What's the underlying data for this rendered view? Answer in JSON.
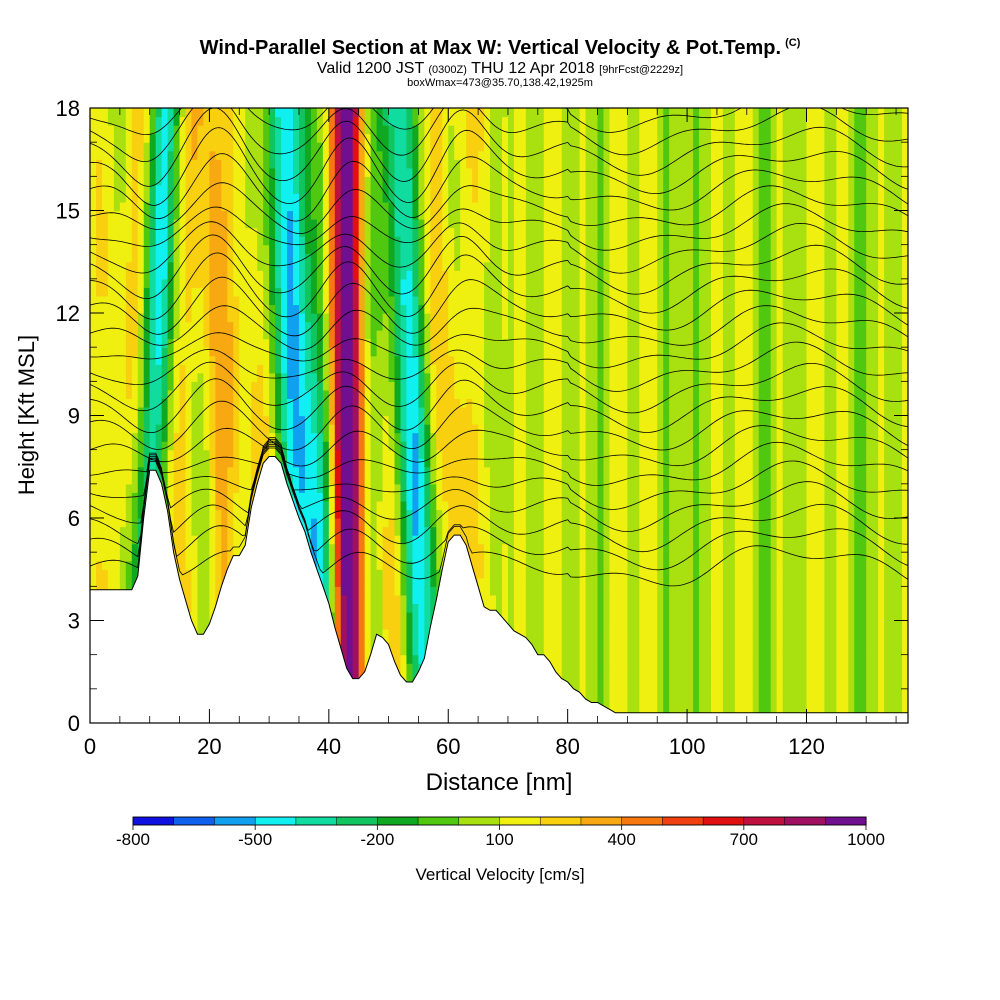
{
  "chart_data": {
    "type": "contour_section",
    "title": "Wind-Parallel Section at Max W: Vertical Velocity & Pot.Temp.",
    "title_corner": "(C)",
    "subtitle_main": "Valid 1200 JST",
    "subtitle_z": "(0300Z)",
    "subtitle_date": "THU 12 Apr 2018",
    "subtitle_fcst": "[9hrFcst@2229z]",
    "subtitle_box": "boxWmax=473@35.70,138.42,1925m",
    "xlabel": "Distance [nm]",
    "ylabel": "Height [Kft MSL]",
    "xlim": [
      0,
      137
    ],
    "ylim": [
      0,
      18
    ],
    "x_ticks": [
      0,
      20,
      40,
      60,
      80,
      100,
      120
    ],
    "y_ticks": [
      0,
      3,
      6,
      9,
      12,
      15,
      18
    ],
    "grid": false,
    "fill_variable": "Vertical Velocity [cm/s]",
    "contour_variable": "Potential Temperature",
    "colorbar": {
      "label": "Vertical Velocity [cm/s]",
      "placement": "bottom",
      "tick_labels": [
        "-800",
        "-500",
        "-200",
        "100",
        "400",
        "700",
        "1000"
      ],
      "tick_values": [
        -800,
        -500,
        -200,
        100,
        400,
        700,
        1000
      ],
      "min": -800,
      "step": 100,
      "colors": [
        "#1010e0",
        "#1060f0",
        "#10a0f0",
        "#10f0f0",
        "#10dca0",
        "#10c460",
        "#10a820",
        "#50c810",
        "#a8e010",
        "#f0f010",
        "#f8d010",
        "#f8a810",
        "#f87810",
        "#f04010",
        "#e01010",
        "#c01040",
        "#a01060",
        "#701090"
      ]
    },
    "velocity_features": [
      {
        "x_center": 10.5,
        "width": 2.5,
        "value": -400,
        "lean": 0.25,
        "top": 18,
        "note": "downdraft"
      },
      {
        "x_center": 21.5,
        "width": 2.5,
        "value": 300,
        "lean": -0.2,
        "top": 18,
        "note": "updraft"
      },
      {
        "x_center": 35,
        "width": 4,
        "value": -500,
        "lean": -0.28,
        "top": 18,
        "note": "downdraft"
      },
      {
        "x_center": 43,
        "width": 2.5,
        "value": 900,
        "lean": -0.04,
        "top": 18,
        "note": "strong updraft"
      },
      {
        "x_center": 54,
        "width": 3,
        "value": -450,
        "lean": -0.3,
        "top": 18,
        "note": "downdraft"
      },
      {
        "x_center": 62,
        "width": 2.5,
        "value": 150,
        "lean": 0.05,
        "top": 18,
        "note": "weak updraft"
      }
    ],
    "terrain_profile": [
      [
        0,
        3.9
      ],
      [
        2,
        3.9
      ],
      [
        3,
        3.9
      ],
      [
        4,
        3.9
      ],
      [
        5,
        3.9
      ],
      [
        6,
        3.9
      ],
      [
        7,
        3.9
      ],
      [
        8,
        4.3
      ],
      [
        9,
        6.0
      ],
      [
        10,
        7.4
      ],
      [
        11,
        7.4
      ],
      [
        12,
        7.0
      ],
      [
        13,
        6.2
      ],
      [
        14,
        5.0
      ],
      [
        15,
        4.2
      ],
      [
        16,
        3.6
      ],
      [
        17,
        3.0
      ],
      [
        18,
        2.6
      ],
      [
        19,
        2.6
      ],
      [
        20,
        2.9
      ],
      [
        21,
        3.4
      ],
      [
        22,
        4.0
      ],
      [
        23,
        4.5
      ],
      [
        24,
        4.9
      ],
      [
        25,
        4.9
      ],
      [
        26,
        5.2
      ],
      [
        27,
        6.3
      ],
      [
        28,
        7.0
      ],
      [
        29,
        7.6
      ],
      [
        30,
        7.8
      ],
      [
        31,
        7.8
      ],
      [
        32,
        7.6
      ],
      [
        33,
        7.0
      ],
      [
        34,
        6.5
      ],
      [
        35,
        6.0
      ],
      [
        36,
        5.6
      ],
      [
        37,
        5.0
      ],
      [
        38,
        4.5
      ],
      [
        39,
        4.0
      ],
      [
        40,
        3.5
      ],
      [
        41,
        2.8
      ],
      [
        42,
        2.2
      ],
      [
        43,
        1.6
      ],
      [
        44,
        1.3
      ],
      [
        45,
        1.3
      ],
      [
        46,
        1.5
      ],
      [
        47,
        2.0
      ],
      [
        48,
        2.6
      ],
      [
        49,
        2.5
      ],
      [
        50,
        2.3
      ],
      [
        51,
        1.8
      ],
      [
        52,
        1.4
      ],
      [
        53,
        1.2
      ],
      [
        54,
        1.2
      ],
      [
        55,
        1.5
      ],
      [
        56,
        1.9
      ],
      [
        57,
        2.8
      ],
      [
        58,
        3.6
      ],
      [
        59,
        4.5
      ],
      [
        60,
        5.3
      ],
      [
        61,
        5.5
      ],
      [
        62,
        5.5
      ],
      [
        63,
        5.2
      ],
      [
        64,
        4.6
      ],
      [
        65,
        4.0
      ],
      [
        66,
        3.4
      ],
      [
        67,
        3.3
      ],
      [
        68,
        3.3
      ],
      [
        69,
        3.1
      ],
      [
        70,
        2.9
      ],
      [
        71,
        2.7
      ],
      [
        72,
        2.6
      ],
      [
        73,
        2.5
      ],
      [
        74,
        2.3
      ],
      [
        75,
        2.0
      ],
      [
        76,
        2.0
      ],
      [
        77,
        1.8
      ],
      [
        78,
        1.5
      ],
      [
        79,
        1.3
      ],
      [
        80,
        1.2
      ],
      [
        81,
        1.0
      ],
      [
        82,
        0.9
      ],
      [
        83,
        0.7
      ],
      [
        84,
        0.6
      ],
      [
        85,
        0.6
      ],
      [
        86,
        0.5
      ],
      [
        87,
        0.4
      ],
      [
        88,
        0.3
      ],
      [
        89,
        0.3
      ],
      [
        90,
        0.3
      ],
      [
        100,
        0.3
      ],
      [
        110,
        0.3
      ],
      [
        120,
        0.3
      ],
      [
        130,
        0.3
      ],
      [
        137,
        0.3
      ]
    ],
    "theta_contour_levels": 24
  }
}
